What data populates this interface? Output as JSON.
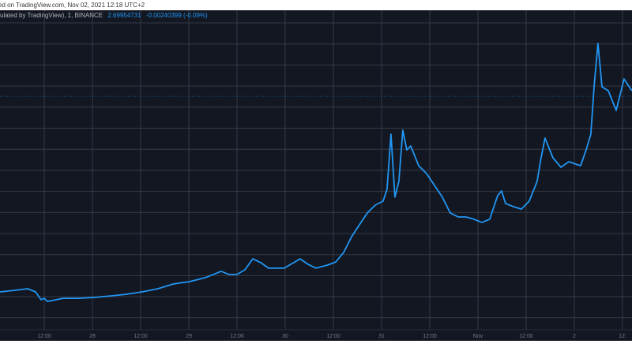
{
  "header": {
    "text": "ed on TradingView.com, Nov 02, 2021 12:18 UTC+2"
  },
  "legend": {
    "source": "ulated by TradingView), 1, BINANCE",
    "last": "2.69954731",
    "change": "-0.00240399 (-0.09%)"
  },
  "colors": {
    "background": "#131722",
    "grid": "#363a45",
    "line": "#2196f3",
    "axis_text": "#787b86"
  },
  "chart_data": {
    "type": "line",
    "title": "",
    "xlabel": "",
    "ylabel": "",
    "grid": true,
    "last_price": 2.69954731,
    "x_ticks": [
      "12:00",
      "28",
      "12:00",
      "29",
      "12:00",
      "30",
      "12:00",
      "31",
      "12:00",
      "Nov",
      "12:00",
      "2",
      "12:"
    ],
    "series": [
      {
        "x": [
          "2021-10-27T01:00",
          "2021-10-27T04:55",
          "2021-10-27T07:52",
          "2021-10-27T09:50",
          "2021-10-27T11:13",
          "2021-10-27T12:00",
          "2021-10-27T12:47",
          "2021-10-27T16:43",
          "2021-10-27T20:39",
          "2021-10-28T00:35",
          "2021-10-28T04:31",
          "2021-10-28T08:27",
          "2021-10-28T12:23",
          "2021-10-28T16:19",
          "2021-10-28T20:15",
          "2021-10-29T00:11",
          "2021-10-29T04:07",
          "2021-10-29T08:03",
          "2021-10-29T10:01",
          "2021-10-29T12:00",
          "2021-10-29T13:58",
          "2021-10-29T15:56",
          "2021-10-29T17:54",
          "2021-10-29T19:51",
          "2021-10-29T23:47",
          "2021-10-30T03:43",
          "2021-10-30T05:42",
          "2021-10-30T07:40",
          "2021-10-30T10:37",
          "2021-10-30T12:35",
          "2021-10-30T14:33",
          "2021-10-30T16:31",
          "2021-10-30T18:29",
          "2021-10-30T20:27",
          "2021-10-30T22:25",
          "2021-10-31T00:23",
          "2021-10-31T01:22",
          "2021-10-31T02:21",
          "2021-10-31T03:20",
          "2021-10-31T04:19",
          "2021-10-31T05:18",
          "2021-10-31T06:17",
          "2021-10-31T07:16",
          "2021-10-31T09:15",
          "2021-10-31T11:12",
          "2021-10-31T13:10",
          "2021-10-31T15:08",
          "2021-10-31T17:06",
          "2021-10-31T19:04",
          "2021-10-31T21:02",
          "2021-10-31T23:00",
          "2021-11-01T00:58",
          "2021-11-01T02:56",
          "2021-11-01T04:54",
          "2021-11-01T05:53",
          "2021-11-01T06:52",
          "2021-11-01T08:50",
          "2021-11-01T10:48",
          "2021-11-01T12:46",
          "2021-11-01T14:44",
          "2021-11-01T15:43",
          "2021-11-01T16:42",
          "2021-11-01T18:40",
          "2021-11-01T20:40",
          "2021-11-01T22:37",
          "2021-11-02T01:34",
          "2021-11-02T02:56",
          "2021-11-02T04:07",
          "2021-11-02T04:55",
          "2021-11-02T05:53",
          "2021-11-02T06:53",
          "2021-11-02T08:27",
          "2021-11-02T10:25",
          "2021-11-02T12:23",
          "2021-11-02T14:21"
        ],
        "y": [
          1.771,
          1.779,
          1.786,
          1.771,
          1.734,
          1.741,
          1.726,
          1.741,
          1.741,
          1.745,
          1.752,
          1.76,
          1.771,
          1.786,
          1.809,
          1.82,
          1.839,
          1.869,
          1.854,
          1.854,
          1.876,
          1.928,
          1.91,
          1.884,
          1.884,
          1.928,
          1.902,
          1.884,
          1.899,
          1.913,
          1.958,
          2.033,
          2.09,
          2.146,
          2.183,
          2.202,
          2.258,
          2.52,
          2.221,
          2.296,
          2.539,
          2.445,
          2.464,
          2.37,
          2.333,
          2.277,
          2.221,
          2.146,
          2.127,
          2.127,
          2.116,
          2.101,
          2.116,
          2.228,
          2.251,
          2.191,
          2.176,
          2.164,
          2.202,
          2.296,
          2.408,
          2.501,
          2.408,
          2.363,
          2.389,
          2.37,
          2.445,
          2.52,
          2.745,
          2.951,
          2.745,
          2.726,
          2.633,
          2.782,
          2.726
        ]
      }
    ]
  }
}
